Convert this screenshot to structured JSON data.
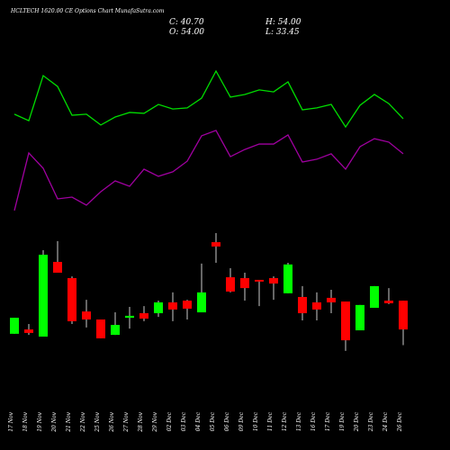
{
  "chart_data": {
    "type": "candlestick",
    "title": "HCLTECH 1620.00 CE Options Chart MunafaSutra.com",
    "ohlc_labels": [
      "C: 40.70",
      "H: 54.00",
      "O: 54.00",
      "L: 33.45"
    ],
    "categories": [
      "17 Nov",
      "18 Nov",
      "19 Nov",
      "20 Nov",
      "21 Nov",
      "22 Nov",
      "25 Nov",
      "26 Nov",
      "27 Nov",
      "28 Nov",
      "29 Nov",
      "02 Dec",
      "03 Dec",
      "04 Dec",
      "05 Dec",
      "06 Dec",
      "09 Dec",
      "10 Dec",
      "11 Dec",
      "12 Dec",
      "13 Dec",
      "16 Dec",
      "17 Dec",
      "19 Dec",
      "20 Dec",
      "23 Dec",
      "24 Dec",
      "26 Dec"
    ],
    "open": [
      38.7,
      40.7,
      37.4,
      71.9,
      64.4,
      49.0,
      45.3,
      38.2,
      46.1,
      48.2,
      48.2,
      53.2,
      54.0,
      48.6,
      81.0,
      64.8,
      64.4,
      63.6,
      64.4,
      57.4,
      55.7,
      53.2,
      55.3,
      53.6,
      40.3,
      50.7,
      54.0,
      54.0
    ],
    "high": [
      46.1,
      43.2,
      77.3,
      81.5,
      65.2,
      54.4,
      45.3,
      48.6,
      51.1,
      51.5,
      54.0,
      57.8,
      54.4,
      71.1,
      85.2,
      69.0,
      66.9,
      63.6,
      65.2,
      71.5,
      60.7,
      57.8,
      59.0,
      53.6,
      52.0,
      60.7,
      59.8,
      54.0
    ],
    "low": [
      38.7,
      38.2,
      37.4,
      66.9,
      43.2,
      41.6,
      36.6,
      38.2,
      41.1,
      44.5,
      46.5,
      44.5,
      45.3,
      48.6,
      71.5,
      57.8,
      54.0,
      51.5,
      54.4,
      57.4,
      44.9,
      44.9,
      48.2,
      30.8,
      40.3,
      50.7,
      52.4,
      33.45
    ],
    "close": [
      46.1,
      39.1,
      75.2,
      66.9,
      44.5,
      45.3,
      36.6,
      42.8,
      47.0,
      45.7,
      53.2,
      49.9,
      50.3,
      57.8,
      79.0,
      58.2,
      59.8,
      62.8,
      61.9,
      70.7,
      48.2,
      49.9,
      53.2,
      35.7,
      52.0,
      60.7,
      52.8,
      40.7
    ],
    "up_color": "#00ff00",
    "down_color": "#ff0000",
    "series": [
      {
        "color": "#00dd00",
        "values": [
          140.1,
          137.1,
          157.9,
          152.9,
          139.6,
          140.1,
          135.1,
          138.8,
          140.9,
          140.5,
          144.6,
          142.5,
          143.0,
          147.5,
          160.0,
          148.0,
          149.2,
          151.3,
          150.4,
          155.0,
          142.1,
          143.0,
          144.6,
          134.2,
          144.2,
          149.2,
          145.0,
          138.0
        ]
      },
      {
        "color": "#a000a0",
        "values": [
          95.6,
          122.2,
          115.1,
          101.0,
          101.8,
          98.1,
          104.3,
          109.3,
          106.8,
          114.7,
          111.4,
          113.5,
          118.4,
          130.1,
          132.6,
          120.5,
          123.8,
          126.3,
          126.3,
          130.5,
          118.0,
          119.3,
          121.8,
          114.7,
          125.1,
          128.8,
          127.2,
          121.8
        ]
      }
    ],
    "ylim": [
      0,
      176.2
    ]
  }
}
